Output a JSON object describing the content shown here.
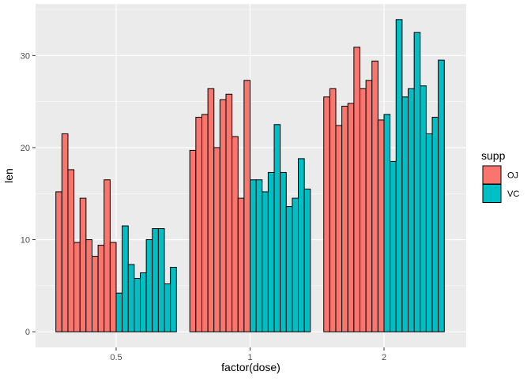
{
  "chart_data": {
    "type": "bar",
    "title": "",
    "xlabel": "factor(dose)",
    "ylabel": "len",
    "x_categories": [
      "0.5",
      "1",
      "2"
    ],
    "y_ticks": [
      "0",
      "10",
      "20",
      "30"
    ],
    "y_minor": [
      5,
      15,
      25,
      35
    ],
    "ylim": [
      -1.7,
      35.6
    ],
    "grid": true,
    "legend": {
      "title": "supp",
      "position": "right",
      "entries": [
        {
          "label": "OJ",
          "color": "#F8766D"
        },
        {
          "label": "VC",
          "color": "#00BFC4"
        }
      ]
    },
    "groups": [
      {
        "category": "0.5",
        "series": [
          {
            "name": "OJ",
            "values": [
              15.2,
              21.5,
              17.6,
              9.7,
              14.5,
              10.0,
              8.2,
              9.4,
              16.5,
              9.7
            ]
          },
          {
            "name": "VC",
            "values": [
              4.2,
              11.5,
              7.3,
              5.8,
              6.4,
              10.0,
              11.2,
              11.2,
              5.2,
              7.0
            ]
          }
        ]
      },
      {
        "category": "1",
        "series": [
          {
            "name": "OJ",
            "values": [
              19.7,
              23.3,
              23.6,
              26.4,
              20.0,
              25.2,
              25.8,
              21.2,
              14.5,
              27.3
            ]
          },
          {
            "name": "VC",
            "values": [
              16.5,
              16.5,
              15.2,
              17.3,
              22.5,
              17.3,
              13.6,
              14.5,
              18.8,
              15.5
            ]
          }
        ]
      },
      {
        "category": "2",
        "series": [
          {
            "name": "OJ",
            "values": [
              25.5,
              26.4,
              22.4,
              24.5,
              24.8,
              30.9,
              26.4,
              27.3,
              29.4,
              23.0
            ]
          },
          {
            "name": "VC",
            "values": [
              23.6,
              18.5,
              33.9,
              25.5,
              26.4,
              32.5,
              26.7,
              21.5,
              23.3,
              29.5
            ]
          }
        ]
      }
    ],
    "colors": {
      "panel_bg": "#EBEBEB",
      "plot_bg": "#FFFFFF",
      "grid": "#FFFFFF",
      "bar_stroke": "#000000",
      "tick": "#333333",
      "axis_text": "#4D4D4D",
      "axis_title": "#000000"
    }
  }
}
